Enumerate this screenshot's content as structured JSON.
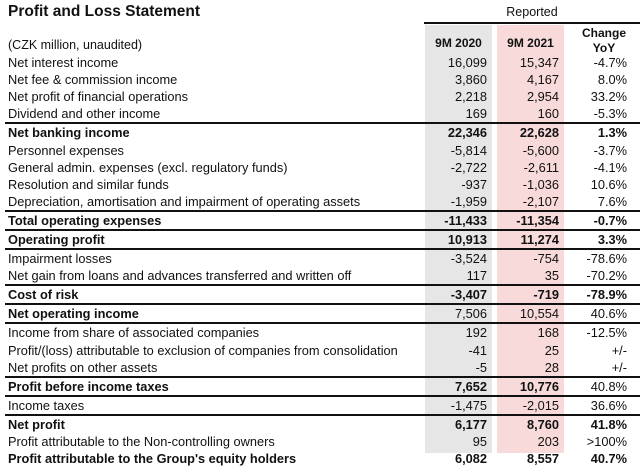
{
  "title": "Profit and Loss Statement",
  "header": {
    "group": "Reported",
    "unit_note": "(CZK million, unaudited)",
    "col_2020": "9M 2020",
    "col_2021": "9M 2021",
    "col_change_line1": "Change",
    "col_change_line2": "YoY"
  },
  "colors": {
    "col_2020_bg": "#e6e6e6",
    "col_2021_bg": "#f8dada"
  },
  "rows": [
    {
      "label": "Net interest income",
      "v2020": "16,099",
      "v2021": "15,347",
      "change": "-4.7%",
      "bold": false,
      "top": false
    },
    {
      "label": "Net fee & commission income",
      "v2020": "3,860",
      "v2021": "4,167",
      "change": "8.0%",
      "bold": false,
      "top": false
    },
    {
      "label": "Net profit of financial operations",
      "v2020": "2,218",
      "v2021": "2,954",
      "change": "33.2%",
      "bold": false,
      "top": false
    },
    {
      "label": "Dividend and other income",
      "v2020": "169",
      "v2021": "160",
      "change": "-5.3%",
      "bold": false,
      "top": false
    },
    {
      "label": "Net banking income",
      "v2020": "22,346",
      "v2021": "22,628",
      "change": "1.3%",
      "bold": true,
      "top": true
    },
    {
      "label": "Personnel expenses",
      "v2020": "-5,814",
      "v2021": "-5,600",
      "change": "-3.7%",
      "bold": false,
      "top": false
    },
    {
      "label": "General admin. expenses (excl. regulatory funds)",
      "v2020": "-2,722",
      "v2021": "-2,611",
      "change": "-4.1%",
      "bold": false,
      "top": false
    },
    {
      "label": "Resolution and similar funds",
      "v2020": "-937",
      "v2021": "-1,036",
      "change": "10.6%",
      "bold": false,
      "top": false
    },
    {
      "label": "Depreciation, amortisation and impairment of operating assets",
      "v2020": "-1,959",
      "v2021": "-2,107",
      "change": "7.6%",
      "bold": false,
      "top": false
    },
    {
      "label": "Total operating expenses",
      "v2020": "-11,433",
      "v2021": "-11,354",
      "change": "-0.7%",
      "bold": true,
      "top": true
    },
    {
      "label": "Operating profit",
      "v2020": "10,913",
      "v2021": "11,274",
      "change": "3.3%",
      "bold": true,
      "top": true
    },
    {
      "label": "Impairment losses",
      "v2020": "-3,524",
      "v2021": "-754",
      "change": "-78.6%",
      "bold": false,
      "top": true
    },
    {
      "label": "Net gain from loans and advances transferred and written off",
      "v2020": "117",
      "v2021": "35",
      "change": "-70.2%",
      "bold": false,
      "top": false
    },
    {
      "label": "Cost of risk",
      "v2020": "-3,407",
      "v2021": "-719",
      "change": "-78.9%",
      "bold": true,
      "top": true
    },
    {
      "label": "Net operating income",
      "v2020": "7,506",
      "v2021": "10,554",
      "change": "40.6%",
      "bold": "label",
      "top": true
    },
    {
      "label": "Income from share of associated companies",
      "v2020": "192",
      "v2021": "168",
      "change": "-12.5%",
      "bold": false,
      "top": true
    },
    {
      "label": "Profit/(loss) attributable to exclusion of companies from consolidation",
      "v2020": "-41",
      "v2021": "25",
      "change": "+/-",
      "bold": false,
      "top": false
    },
    {
      "label": "Net profits on other assets",
      "v2020": "-5",
      "v2021": "28",
      "change": "+/-",
      "bold": false,
      "top": false
    },
    {
      "label": "Profit before income taxes",
      "v2020": "7,652",
      "v2021": "10,776",
      "change": "40.8%",
      "bold": "values",
      "top": true
    },
    {
      "label": "Income taxes",
      "v2020": "-1,475",
      "v2021": "-2,015",
      "change": "36.6%",
      "bold": false,
      "top": true
    },
    {
      "label": "Net profit",
      "v2020": "6,177",
      "v2021": "8,760",
      "change": "41.8%",
      "bold": true,
      "top": true
    },
    {
      "label": "Profit attributable to the Non-controlling owners",
      "v2020": "95",
      "v2021": "203",
      "change": ">100%",
      "bold": false,
      "top": false
    },
    {
      "label": "Profit attributable to the Group's equity holders",
      "v2020": "6,082",
      "v2021": "8,557",
      "change": "40.7%",
      "bold": true,
      "top": false
    }
  ]
}
